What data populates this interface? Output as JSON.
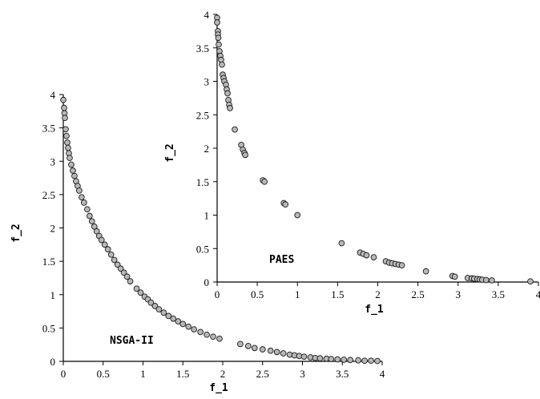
{
  "chart_data": [
    {
      "type": "scatter",
      "annotation": "NSGA-II",
      "xlabel": "f_1",
      "ylabel": "f_2",
      "xlim": [
        0,
        4
      ],
      "ylim": [
        0,
        4
      ],
      "xticks": [
        "0",
        "0.5",
        "1",
        "1.5",
        "2",
        "2.5",
        "3",
        "3.5",
        "4"
      ],
      "yticks": [
        "0",
        "0.5",
        "1",
        "1.5",
        "2",
        "2.5",
        "3",
        "3.5",
        "4"
      ],
      "grid": false,
      "series": [
        {
          "points": [
            [
              0.0,
              3.92
            ],
            [
              0.01,
              3.8
            ],
            [
              0.015,
              3.72
            ],
            [
              0.02,
              3.65
            ],
            [
              0.03,
              3.48
            ],
            [
              0.04,
              3.38
            ],
            [
              0.05,
              3.28
            ],
            [
              0.06,
              3.2
            ],
            [
              0.07,
              3.12
            ],
            [
              0.08,
              3.05
            ],
            [
              0.1,
              2.95
            ],
            [
              0.12,
              2.86
            ],
            [
              0.14,
              2.78
            ],
            [
              0.16,
              2.7
            ],
            [
              0.18,
              2.63
            ],
            [
              0.2,
              2.56
            ],
            [
              0.23,
              2.46
            ],
            [
              0.26,
              2.38
            ],
            [
              0.3,
              2.28
            ],
            [
              0.33,
              2.18
            ],
            [
              0.36,
              2.1
            ],
            [
              0.39,
              2.02
            ],
            [
              0.42,
              1.95
            ],
            [
              0.45,
              1.88
            ],
            [
              0.48,
              1.82
            ],
            [
              0.52,
              1.75
            ],
            [
              0.56,
              1.68
            ],
            [
              0.6,
              1.6
            ],
            [
              0.64,
              1.52
            ],
            [
              0.68,
              1.45
            ],
            [
              0.72,
              1.39
            ],
            [
              0.76,
              1.33
            ],
            [
              0.8,
              1.27
            ],
            [
              0.84,
              1.2
            ],
            [
              0.92,
              1.09
            ],
            [
              0.97,
              1.03
            ],
            [
              1.02,
              0.97
            ],
            [
              1.06,
              0.93
            ],
            [
              1.1,
              0.88
            ],
            [
              1.15,
              0.83
            ],
            [
              1.2,
              0.78
            ],
            [
              1.26,
              0.73
            ],
            [
              1.32,
              0.68
            ],
            [
              1.38,
              0.64
            ],
            [
              1.44,
              0.6
            ],
            [
              1.5,
              0.56
            ],
            [
              1.57,
              0.52
            ],
            [
              1.64,
              0.48
            ],
            [
              1.72,
              0.44
            ],
            [
              1.8,
              0.4
            ],
            [
              1.88,
              0.37
            ],
            [
              1.96,
              0.34
            ],
            [
              2.22,
              0.26
            ],
            [
              2.32,
              0.23
            ],
            [
              2.4,
              0.2
            ],
            [
              2.5,
              0.18
            ],
            [
              2.6,
              0.16
            ],
            [
              2.68,
              0.14
            ],
            [
              2.76,
              0.12
            ],
            [
              2.84,
              0.1
            ],
            [
              2.9,
              0.09
            ],
            [
              2.96,
              0.08
            ],
            [
              3.02,
              0.07
            ],
            [
              3.1,
              0.06
            ],
            [
              3.16,
              0.05
            ],
            [
              3.22,
              0.045
            ],
            [
              3.3,
              0.04
            ],
            [
              3.36,
              0.035
            ],
            [
              3.44,
              0.03
            ],
            [
              3.52,
              0.025
            ],
            [
              3.6,
              0.02
            ],
            [
              3.7,
              0.015
            ],
            [
              3.78,
              0.01
            ],
            [
              3.86,
              0.01
            ],
            [
              3.94,
              0.005
            ]
          ]
        }
      ]
    },
    {
      "type": "scatter",
      "annotation": "PAES",
      "xlabel": "f_1",
      "ylabel": "f_2",
      "xlim": [
        0,
        4
      ],
      "ylim": [
        0,
        4
      ],
      "xticks": [
        "0",
        "0.5",
        "1",
        "1.5",
        "2",
        "2.5",
        "3",
        "3.5",
        "4"
      ],
      "yticks": [
        "0",
        "0.5",
        "1",
        "1.5",
        "2",
        "2.5",
        "3",
        "3.5",
        "4"
      ],
      "grid": false,
      "series": [
        {
          "points": [
            [
              0.0,
              3.95
            ],
            [
              0.0,
              3.88
            ],
            [
              0.01,
              3.75
            ],
            [
              0.01,
              3.7
            ],
            [
              0.015,
              3.65
            ],
            [
              0.02,
              3.55
            ],
            [
              0.03,
              3.45
            ],
            [
              0.04,
              3.38
            ],
            [
              0.05,
              3.32
            ],
            [
              0.06,
              3.25
            ],
            [
              0.07,
              3.1
            ],
            [
              0.08,
              3.05
            ],
            [
              0.09,
              3.0
            ],
            [
              0.11,
              2.95
            ],
            [
              0.12,
              2.88
            ],
            [
              0.13,
              2.82
            ],
            [
              0.14,
              2.72
            ],
            [
              0.15,
              2.65
            ],
            [
              0.16,
              2.6
            ],
            [
              0.22,
              2.28
            ],
            [
              0.3,
              2.05
            ],
            [
              0.32,
              1.98
            ],
            [
              0.34,
              1.93
            ],
            [
              0.35,
              1.9
            ],
            [
              0.57,
              1.52
            ],
            [
              0.59,
              1.5
            ],
            [
              0.83,
              1.18
            ],
            [
              0.85,
              1.16
            ],
            [
              1.0,
              1.0
            ],
            [
              1.55,
              0.58
            ],
            [
              1.78,
              0.44
            ],
            [
              1.82,
              0.42
            ],
            [
              1.86,
              0.4
            ],
            [
              1.95,
              0.37
            ],
            [
              2.1,
              0.31
            ],
            [
              2.14,
              0.29
            ],
            [
              2.18,
              0.28
            ],
            [
              2.22,
              0.27
            ],
            [
              2.26,
              0.26
            ],
            [
              2.3,
              0.25
            ],
            [
              2.6,
              0.16
            ],
            [
              2.93,
              0.09
            ],
            [
              2.96,
              0.08
            ],
            [
              3.12,
              0.06
            ],
            [
              3.17,
              0.055
            ],
            [
              3.2,
              0.05
            ],
            [
              3.24,
              0.045
            ],
            [
              3.27,
              0.04
            ],
            [
              3.3,
              0.035
            ],
            [
              3.35,
              0.03
            ],
            [
              3.42,
              0.025
            ],
            [
              3.9,
              0.01
            ]
          ]
        }
      ]
    }
  ]
}
